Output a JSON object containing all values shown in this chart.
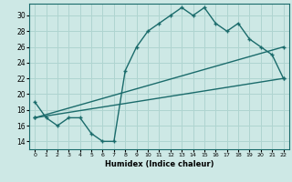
{
  "title": "",
  "xlabel": "Humidex (Indice chaleur)",
  "bg_color": "#cde8e5",
  "grid_color": "#afd4d0",
  "line_color": "#1a6b6b",
  "xlim": [
    -0.5,
    22.5
  ],
  "ylim": [
    13.0,
    31.5
  ],
  "yticks": [
    14,
    16,
    18,
    20,
    22,
    24,
    26,
    28,
    30
  ],
  "xticks": [
    0,
    1,
    2,
    3,
    4,
    5,
    6,
    7,
    8,
    9,
    10,
    11,
    12,
    13,
    14,
    15,
    16,
    17,
    18,
    19,
    20,
    21,
    22
  ],
  "line1_x": [
    0,
    1,
    2,
    3,
    4,
    5,
    6,
    7,
    8,
    9,
    10,
    11,
    12,
    13,
    14,
    15,
    16,
    17,
    18,
    19,
    20,
    21,
    22
  ],
  "line1_y": [
    19,
    17,
    16,
    17,
    17,
    15,
    14,
    14,
    23,
    26,
    28,
    29,
    30,
    31,
    30,
    31,
    29,
    28,
    29,
    27,
    26,
    25,
    22
  ],
  "line2_x": [
    0,
    22
  ],
  "line2_y": [
    17,
    26
  ],
  "line3_x": [
    0,
    22
  ],
  "line3_y": [
    17,
    22
  ]
}
